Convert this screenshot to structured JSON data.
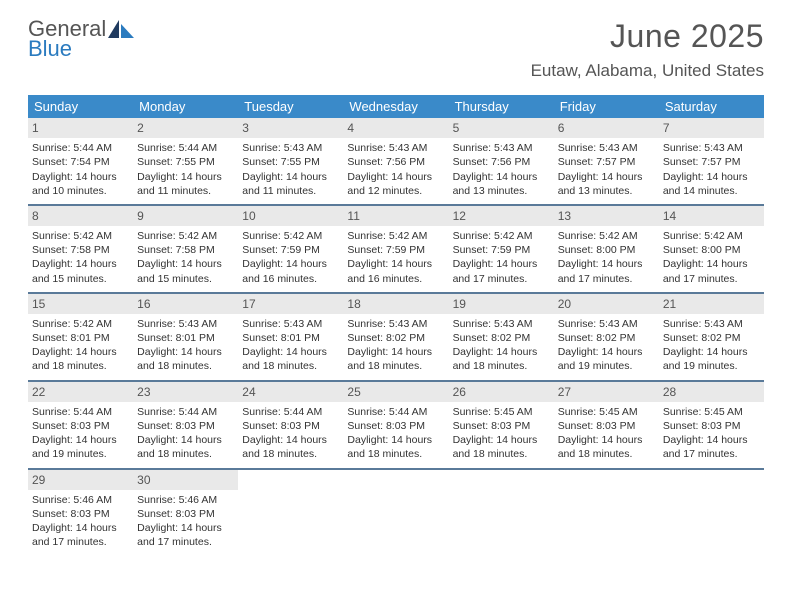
{
  "logo": {
    "top": "General",
    "bottom": "Blue"
  },
  "title": "June 2025",
  "location": "Eutaw, Alabama, United States",
  "day_headers": [
    "Sunday",
    "Monday",
    "Tuesday",
    "Wednesday",
    "Thursday",
    "Friday",
    "Saturday"
  ],
  "style": {
    "header_bg": "#3a8ac9",
    "header_text": "#ffffff",
    "daynum_bg": "#e9e9e9",
    "border": "#5a7a99",
    "title_color": "#555555",
    "logo_blue": "#2b7bbf"
  },
  "weeks": [
    [
      {
        "n": "1",
        "sr": "Sunrise: 5:44 AM",
        "ss": "Sunset: 7:54 PM",
        "d1": "Daylight: 14 hours",
        "d2": "and 10 minutes."
      },
      {
        "n": "2",
        "sr": "Sunrise: 5:44 AM",
        "ss": "Sunset: 7:55 PM",
        "d1": "Daylight: 14 hours",
        "d2": "and 11 minutes."
      },
      {
        "n": "3",
        "sr": "Sunrise: 5:43 AM",
        "ss": "Sunset: 7:55 PM",
        "d1": "Daylight: 14 hours",
        "d2": "and 11 minutes."
      },
      {
        "n": "4",
        "sr": "Sunrise: 5:43 AM",
        "ss": "Sunset: 7:56 PM",
        "d1": "Daylight: 14 hours",
        "d2": "and 12 minutes."
      },
      {
        "n": "5",
        "sr": "Sunrise: 5:43 AM",
        "ss": "Sunset: 7:56 PM",
        "d1": "Daylight: 14 hours",
        "d2": "and 13 minutes."
      },
      {
        "n": "6",
        "sr": "Sunrise: 5:43 AM",
        "ss": "Sunset: 7:57 PM",
        "d1": "Daylight: 14 hours",
        "d2": "and 13 minutes."
      },
      {
        "n": "7",
        "sr": "Sunrise: 5:43 AM",
        "ss": "Sunset: 7:57 PM",
        "d1": "Daylight: 14 hours",
        "d2": "and 14 minutes."
      }
    ],
    [
      {
        "n": "8",
        "sr": "Sunrise: 5:42 AM",
        "ss": "Sunset: 7:58 PM",
        "d1": "Daylight: 14 hours",
        "d2": "and 15 minutes."
      },
      {
        "n": "9",
        "sr": "Sunrise: 5:42 AM",
        "ss": "Sunset: 7:58 PM",
        "d1": "Daylight: 14 hours",
        "d2": "and 15 minutes."
      },
      {
        "n": "10",
        "sr": "Sunrise: 5:42 AM",
        "ss": "Sunset: 7:59 PM",
        "d1": "Daylight: 14 hours",
        "d2": "and 16 minutes."
      },
      {
        "n": "11",
        "sr": "Sunrise: 5:42 AM",
        "ss": "Sunset: 7:59 PM",
        "d1": "Daylight: 14 hours",
        "d2": "and 16 minutes."
      },
      {
        "n": "12",
        "sr": "Sunrise: 5:42 AM",
        "ss": "Sunset: 7:59 PM",
        "d1": "Daylight: 14 hours",
        "d2": "and 17 minutes."
      },
      {
        "n": "13",
        "sr": "Sunrise: 5:42 AM",
        "ss": "Sunset: 8:00 PM",
        "d1": "Daylight: 14 hours",
        "d2": "and 17 minutes."
      },
      {
        "n": "14",
        "sr": "Sunrise: 5:42 AM",
        "ss": "Sunset: 8:00 PM",
        "d1": "Daylight: 14 hours",
        "d2": "and 17 minutes."
      }
    ],
    [
      {
        "n": "15",
        "sr": "Sunrise: 5:42 AM",
        "ss": "Sunset: 8:01 PM",
        "d1": "Daylight: 14 hours",
        "d2": "and 18 minutes."
      },
      {
        "n": "16",
        "sr": "Sunrise: 5:43 AM",
        "ss": "Sunset: 8:01 PM",
        "d1": "Daylight: 14 hours",
        "d2": "and 18 minutes."
      },
      {
        "n": "17",
        "sr": "Sunrise: 5:43 AM",
        "ss": "Sunset: 8:01 PM",
        "d1": "Daylight: 14 hours",
        "d2": "and 18 minutes."
      },
      {
        "n": "18",
        "sr": "Sunrise: 5:43 AM",
        "ss": "Sunset: 8:02 PM",
        "d1": "Daylight: 14 hours",
        "d2": "and 18 minutes."
      },
      {
        "n": "19",
        "sr": "Sunrise: 5:43 AM",
        "ss": "Sunset: 8:02 PM",
        "d1": "Daylight: 14 hours",
        "d2": "and 18 minutes."
      },
      {
        "n": "20",
        "sr": "Sunrise: 5:43 AM",
        "ss": "Sunset: 8:02 PM",
        "d1": "Daylight: 14 hours",
        "d2": "and 19 minutes."
      },
      {
        "n": "21",
        "sr": "Sunrise: 5:43 AM",
        "ss": "Sunset: 8:02 PM",
        "d1": "Daylight: 14 hours",
        "d2": "and 19 minutes."
      }
    ],
    [
      {
        "n": "22",
        "sr": "Sunrise: 5:44 AM",
        "ss": "Sunset: 8:03 PM",
        "d1": "Daylight: 14 hours",
        "d2": "and 19 minutes."
      },
      {
        "n": "23",
        "sr": "Sunrise: 5:44 AM",
        "ss": "Sunset: 8:03 PM",
        "d1": "Daylight: 14 hours",
        "d2": "and 18 minutes."
      },
      {
        "n": "24",
        "sr": "Sunrise: 5:44 AM",
        "ss": "Sunset: 8:03 PM",
        "d1": "Daylight: 14 hours",
        "d2": "and 18 minutes."
      },
      {
        "n": "25",
        "sr": "Sunrise: 5:44 AM",
        "ss": "Sunset: 8:03 PM",
        "d1": "Daylight: 14 hours",
        "d2": "and 18 minutes."
      },
      {
        "n": "26",
        "sr": "Sunrise: 5:45 AM",
        "ss": "Sunset: 8:03 PM",
        "d1": "Daylight: 14 hours",
        "d2": "and 18 minutes."
      },
      {
        "n": "27",
        "sr": "Sunrise: 5:45 AM",
        "ss": "Sunset: 8:03 PM",
        "d1": "Daylight: 14 hours",
        "d2": "and 18 minutes."
      },
      {
        "n": "28",
        "sr": "Sunrise: 5:45 AM",
        "ss": "Sunset: 8:03 PM",
        "d1": "Daylight: 14 hours",
        "d2": "and 17 minutes."
      }
    ],
    [
      {
        "n": "29",
        "sr": "Sunrise: 5:46 AM",
        "ss": "Sunset: 8:03 PM",
        "d1": "Daylight: 14 hours",
        "d2": "and 17 minutes."
      },
      {
        "n": "30",
        "sr": "Sunrise: 5:46 AM",
        "ss": "Sunset: 8:03 PM",
        "d1": "Daylight: 14 hours",
        "d2": "and 17 minutes."
      },
      null,
      null,
      null,
      null,
      null
    ]
  ]
}
